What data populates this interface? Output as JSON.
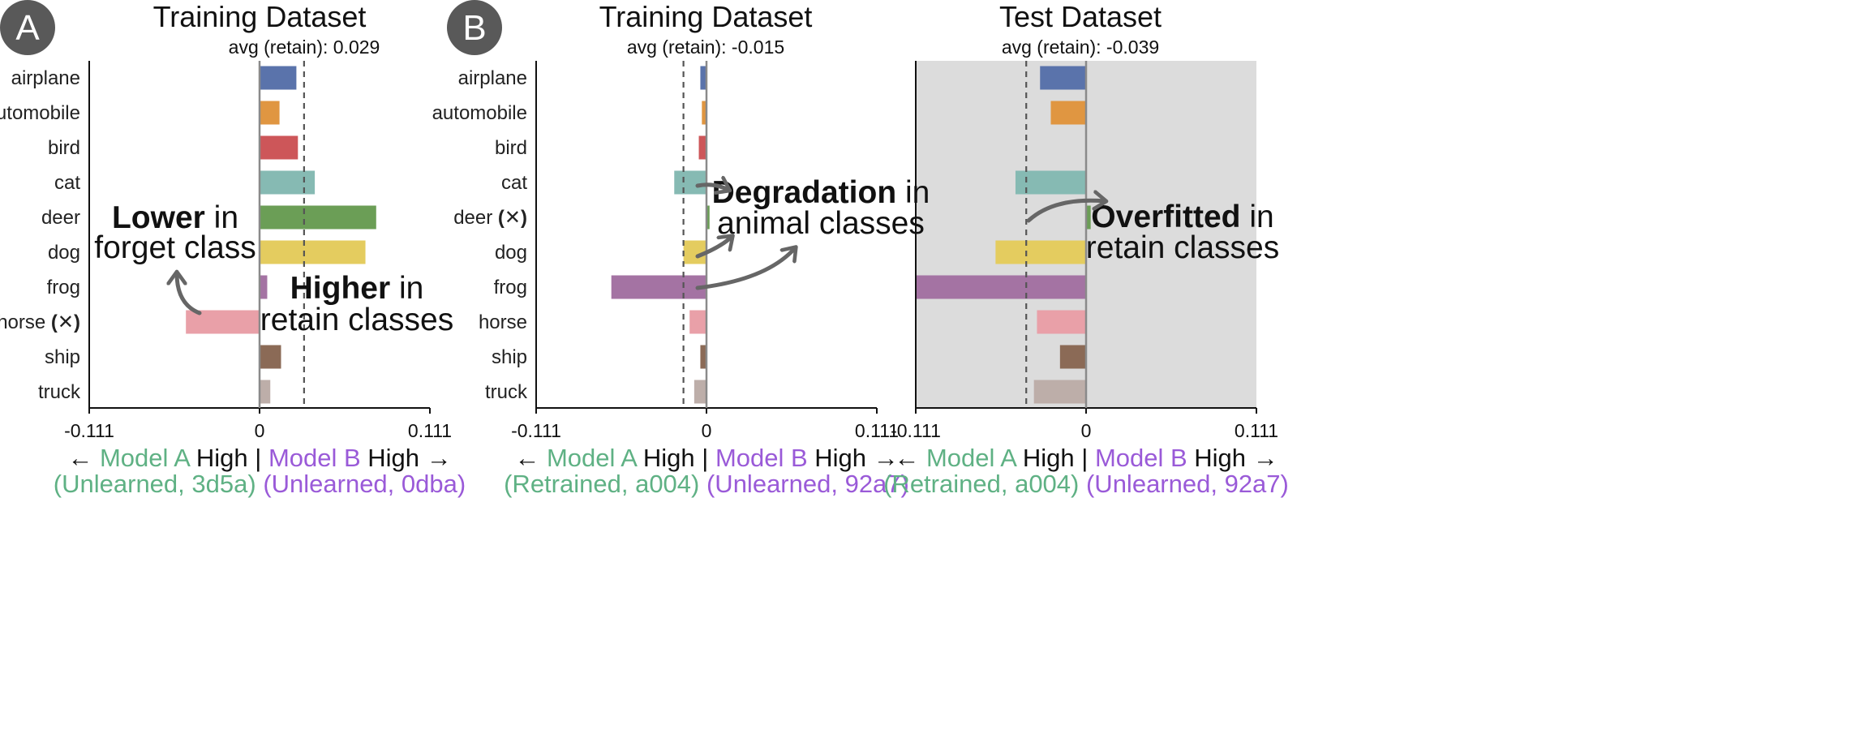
{
  "panel_badges": [
    "A",
    "B"
  ],
  "classes": [
    "airplane",
    "automobile",
    "bird",
    "cat",
    "deer",
    "dog",
    "frog",
    "horse",
    "ship",
    "truck"
  ],
  "forget_mark": "(✕)",
  "colors": {
    "airplane": "#5a73ab",
    "automobile": "#e09641",
    "bird": "#cd5659",
    "cat": "#86bab3",
    "deer": "#6b9e56",
    "dog": "#e4cc5f",
    "frog": "#a473a3",
    "horse": "#e9a0a8",
    "ship": "#8b6a56",
    "truck": "#bdaea9",
    "model_a": "#5fb184",
    "model_b": "#9a5ad8",
    "test_bg": "#dcdcdc",
    "badge": "#595959",
    "arrow": "#666666"
  },
  "legend_parts": {
    "left_arrow": "←",
    "model_a": "Model A",
    "high_mid": "High |",
    "model_b": "Model B",
    "high_end": "High →"
  },
  "chart_data": [
    {
      "type": "bar",
      "orientation": "horizontal",
      "title": "Training Dataset",
      "categories": [
        "airplane",
        "automobile",
        "bird",
        "cat",
        "deer",
        "dog",
        "frog",
        "horse",
        "ship",
        "truck"
      ],
      "forget_class": "horse",
      "values": [
        0.024,
        0.013,
        0.025,
        0.036,
        0.076,
        0.069,
        0.005,
        -0.048,
        0.014,
        0.007
      ],
      "avg_retain_label": "avg (retain): 0.029",
      "avg_retain": 0.029,
      "xlim": [
        -0.111,
        0.111
      ],
      "tick_labels": [
        "-0.111",
        "0",
        "0.111"
      ],
      "background": "white",
      "model_a_id": "(Unlearned, 3d5a)",
      "model_b_id": "(Unlearned, 0dba)",
      "annotations": [
        {
          "bold": "Lower",
          "rest": " in",
          "line2": "forget class"
        },
        {
          "bold": "Higher",
          "rest": " in",
          "line2": "retain classes"
        }
      ]
    },
    {
      "type": "bar",
      "orientation": "horizontal",
      "title": "Training Dataset",
      "categories": [
        "airplane",
        "automobile",
        "bird",
        "cat",
        "deer",
        "dog",
        "frog",
        "horse",
        "ship",
        "truck"
      ],
      "forget_class": "deer",
      "values": [
        -0.004,
        -0.003,
        -0.005,
        -0.021,
        0.002,
        -0.015,
        -0.062,
        -0.011,
        -0.004,
        -0.008
      ],
      "avg_retain_label": "avg (retain): -0.015",
      "avg_retain": -0.015,
      "xlim": [
        -0.111,
        0.111
      ],
      "tick_labels": [
        "-0.111",
        "0",
        "0.111"
      ],
      "background": "white",
      "model_a_id": "(Retrained, a004)",
      "model_b_id": "(Unlearned, 92a7)",
      "annotations": [
        {
          "bold": "Degradation",
          "rest": " in",
          "line2": "animal classes"
        }
      ]
    },
    {
      "type": "bar",
      "orientation": "horizontal",
      "title": "Test Dataset",
      "categories": [
        "airplane",
        "automobile",
        "bird",
        "cat",
        "deer",
        "dog",
        "frog",
        "horse",
        "ship",
        "truck"
      ],
      "forget_class": "deer",
      "values": [
        -0.03,
        -0.023,
        null,
        -0.046,
        0.003,
        -0.059,
        -0.111,
        -0.032,
        -0.017,
        -0.034
      ],
      "avg_retain_label": "avg (retain): -0.039",
      "avg_retain": -0.039,
      "xlim": [
        -0.111,
        0.111
      ],
      "tick_labels": [
        "-0.111",
        "0",
        "0.111"
      ],
      "background": "gray",
      "model_a_id": "(Retrained, a004)",
      "model_b_id": "(Unlearned, 92a7)",
      "annotations": [
        {
          "bold": "Overfitted",
          "rest": " in",
          "line2": "retain classes"
        }
      ]
    }
  ]
}
